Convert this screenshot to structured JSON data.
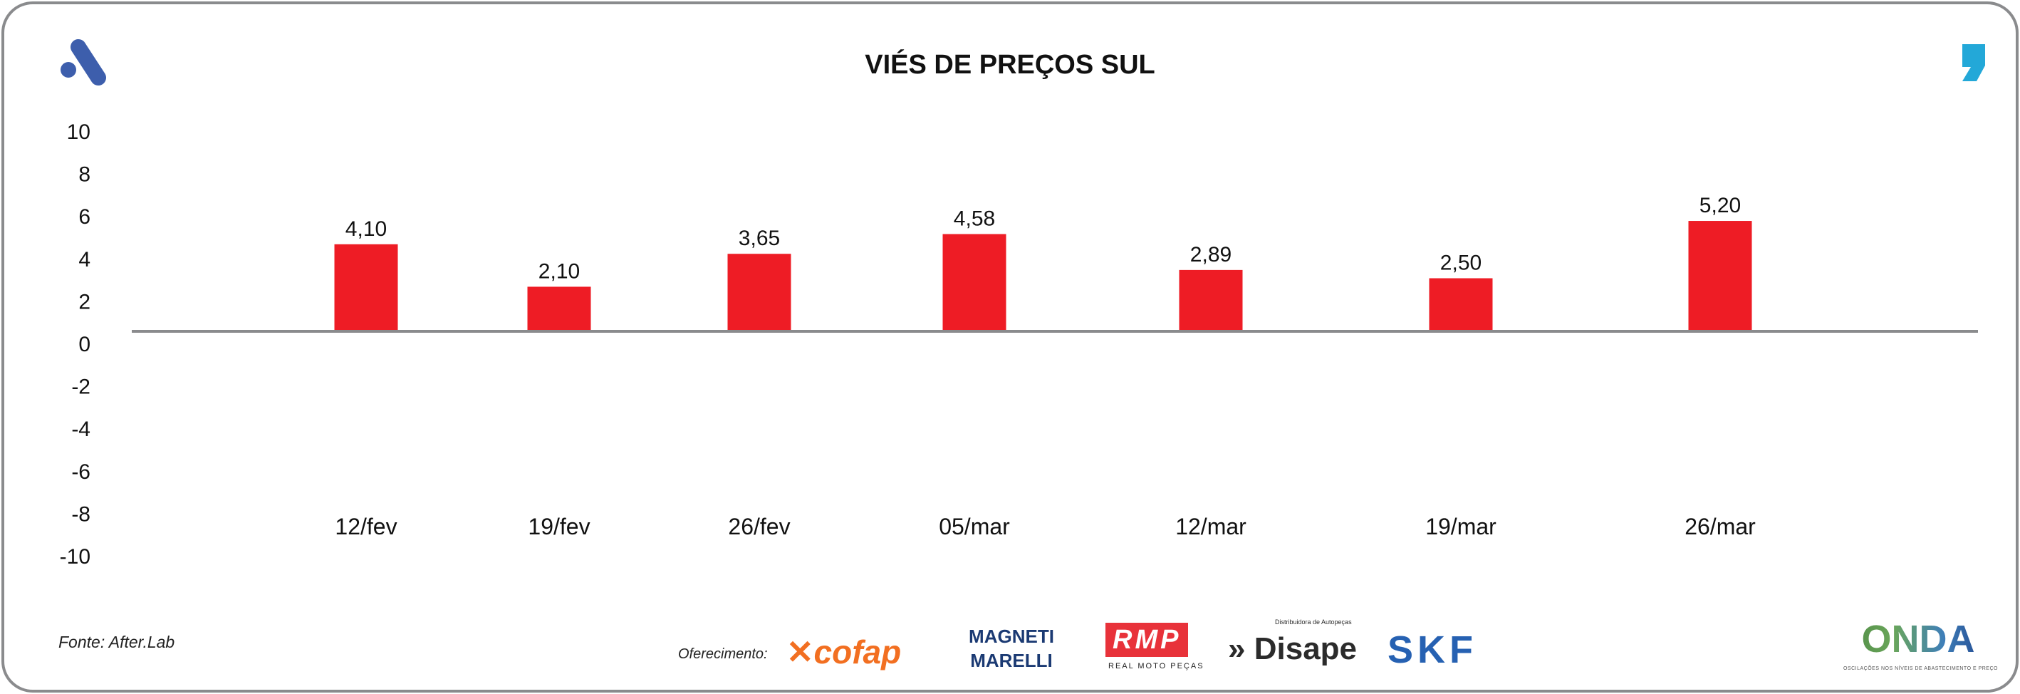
{
  "chart_data": {
    "type": "bar",
    "title": "VIÉS DE PREÇOS SUL",
    "categories": [
      "12/fev",
      "19/fev",
      "26/fev",
      "05/mar",
      "12/mar",
      "19/mar",
      "26/mar"
    ],
    "values": [
      4.1,
      2.1,
      3.65,
      4.58,
      2.89,
      2.5,
      5.2
    ],
    "value_labels": [
      "4,10",
      "2,10",
      "3,65",
      "4,58",
      "2,89",
      "2,50",
      "5,20"
    ],
    "yticks": [
      10,
      8,
      6,
      4,
      2,
      0,
      -2,
      -4,
      -6,
      -8,
      -10
    ],
    "ylim": [
      -10,
      10
    ],
    "xlabel": "",
    "ylabel": "",
    "grid": false,
    "bar_color": "#ee1c25"
  },
  "footer": {
    "source": "Fonte: After.Lab",
    "offer_label": "Oferecimento:",
    "sponsors": [
      "cofap",
      "MAGNETI MARELLI",
      "RMP",
      "Disape",
      "SKF"
    ],
    "rmp_tagline": "REAL MOTO PEÇAS",
    "disape_tagline": "Distribuidora de Autopeças",
    "onda": "ONDA",
    "onda_tagline": "OSCILAÇÕES NOS NÍVEIS DE ABASTECIMENTO E PREÇO"
  }
}
